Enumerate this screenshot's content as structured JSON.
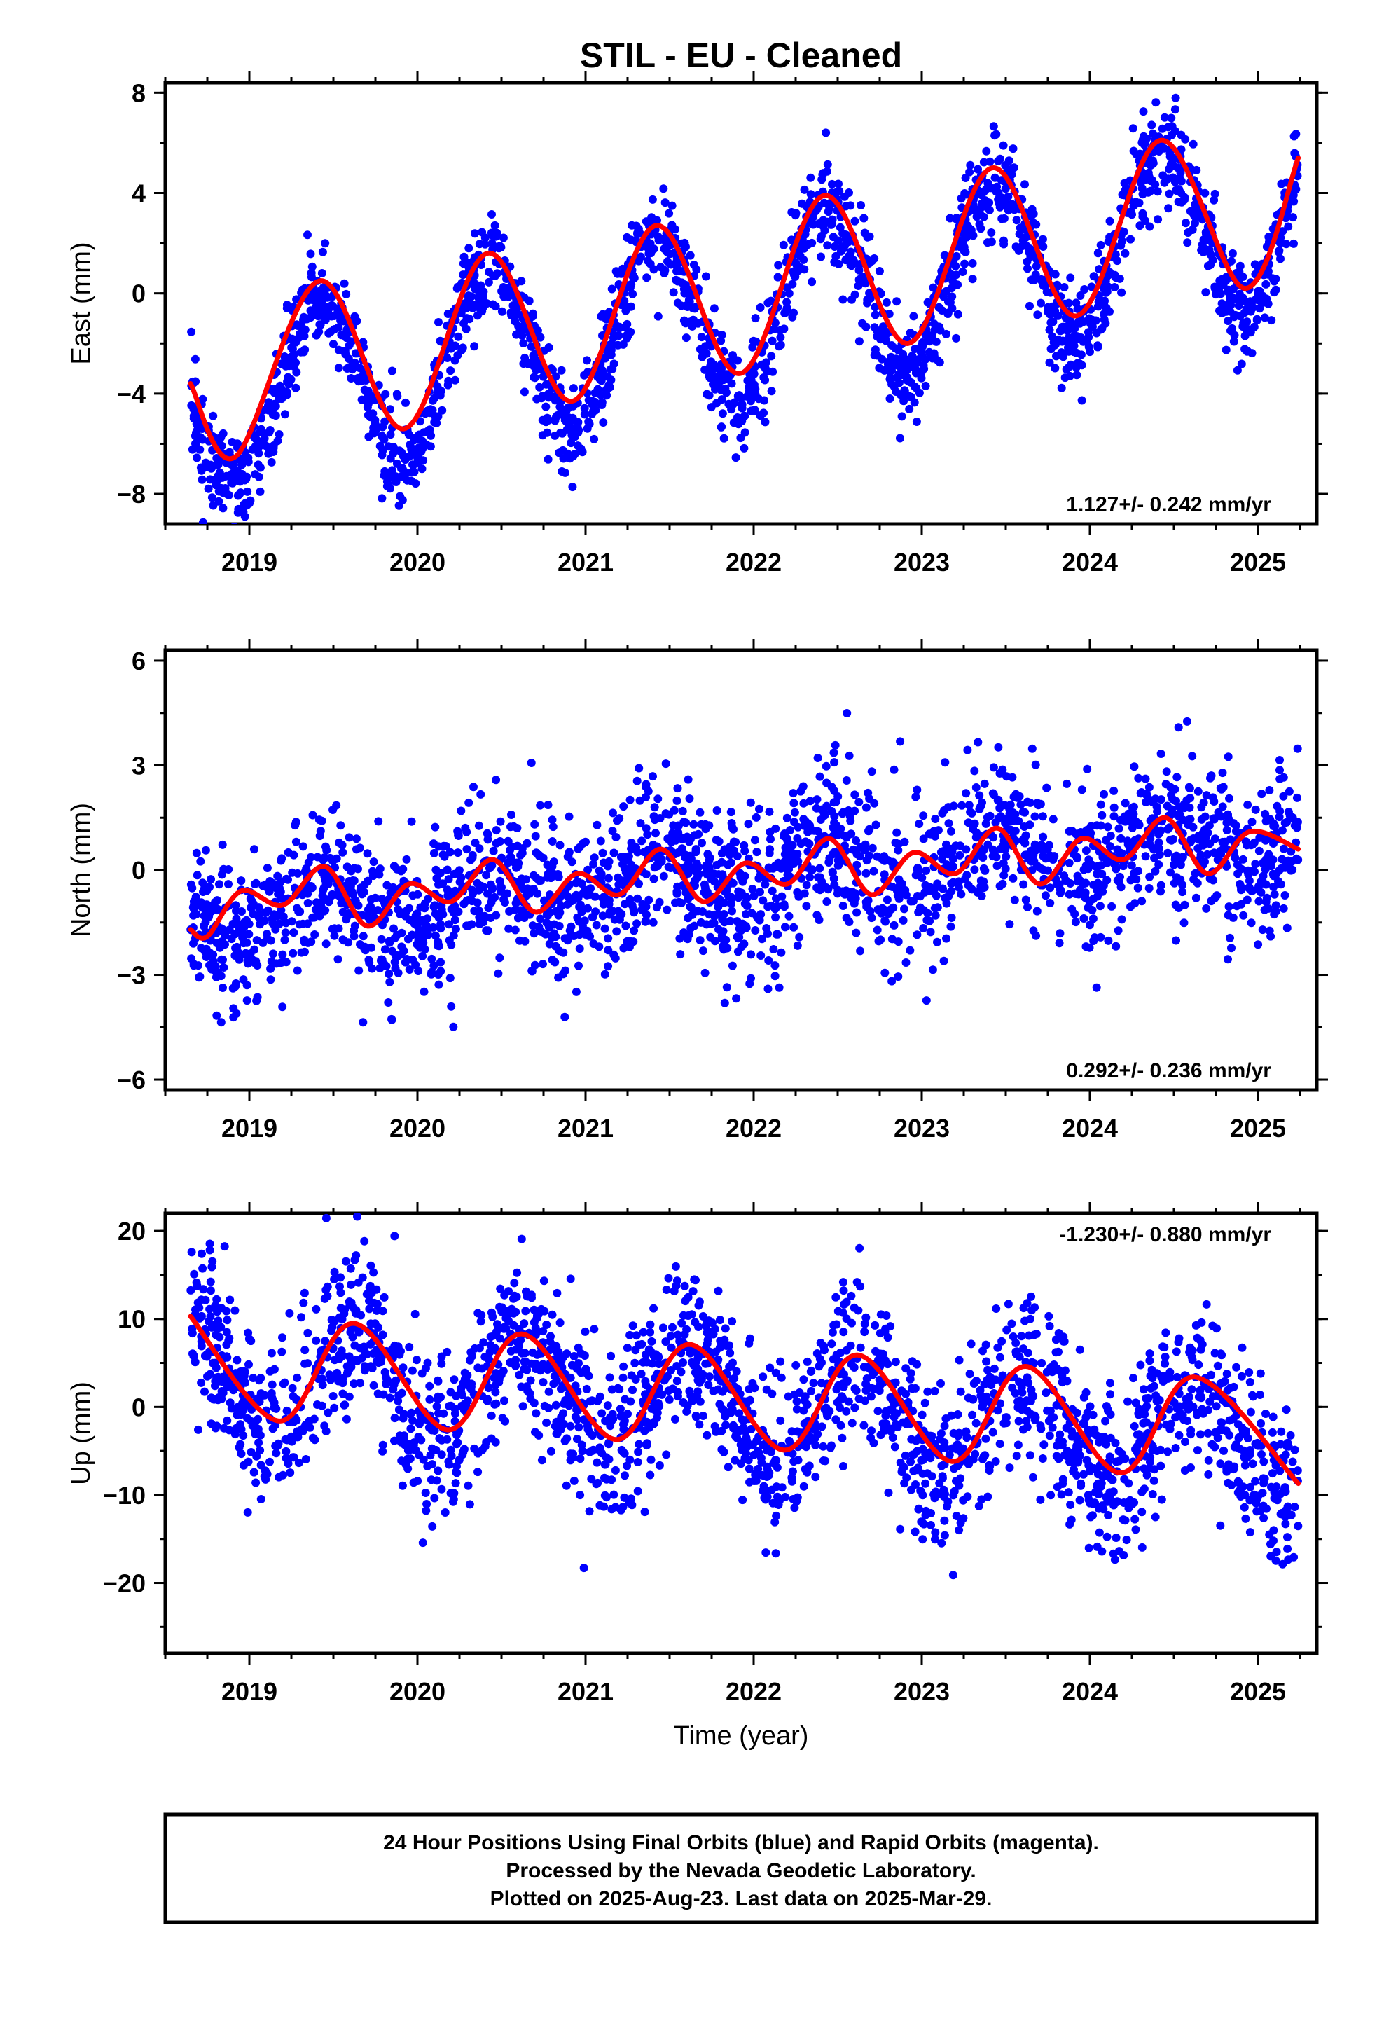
{
  "title": "STIL  - EU - Cleaned",
  "footer": {
    "line1": "24 Hour Positions Using Final Orbits (blue) and Rapid Orbits (magenta).",
    "line2": "Processed by the Nevada Geodetic Laboratory.",
    "line3": "Plotted on 2025-Aug-23. Last data on 2025-Mar-29."
  },
  "colors": {
    "points": "#0000ff",
    "model": "#ff0000",
    "axes": "#000000"
  },
  "chart_data": [
    {
      "type": "scatter",
      "component": "East",
      "ylabel": "East (mm)",
      "xlabel": "",
      "xlim": [
        2018.5,
        2025.35
      ],
      "ylim": [
        -9.2,
        8.4
      ],
      "xticks": [
        "2019",
        "2020",
        "2021",
        "2022",
        "2023",
        "2024",
        "2025"
      ],
      "yticks": [
        "8",
        "4",
        "0",
        "−4",
        "−8"
      ],
      "yticks_values": [
        8,
        4,
        0,
        -4,
        -8
      ],
      "rate_label": "1.127+/- 0.242 mm/yr",
      "rate_position": "bottom-right",
      "grid": false,
      "series": [
        {
          "kind": "daily-positions",
          "first": 2018.65,
          "last": 2025.24,
          "trend_start": -4.6,
          "trend_end": 3.2,
          "annual_amp": 3.4,
          "peak_time": 0.42,
          "scatter_sd": 1.0
        },
        {
          "kind": "model-fit",
          "points": [
            [
              2018.65,
              -3.6
            ],
            [
              2018.92,
              -6.5
            ],
            [
              2019.42,
              0.5
            ],
            [
              2019.92,
              -5.4
            ],
            [
              2020.42,
              1.6
            ],
            [
              2020.92,
              -4.3
            ],
            [
              2021.42,
              2.7
            ],
            [
              2021.92,
              -3.2
            ],
            [
              2022.42,
              3.9
            ],
            [
              2022.92,
              -2.0
            ],
            [
              2023.42,
              5.0
            ],
            [
              2023.92,
              -0.9
            ],
            [
              2024.42,
              6.1
            ],
            [
              2024.92,
              0.2
            ],
            [
              2025.24,
              5.4
            ]
          ]
        }
      ]
    },
    {
      "type": "scatter",
      "component": "North",
      "ylabel": "North (mm)",
      "xlabel": "",
      "xlim": [
        2018.5,
        2025.35
      ],
      "ylim": [
        -6.3,
        6.3
      ],
      "xticks": [
        "2019",
        "2020",
        "2021",
        "2022",
        "2023",
        "2024",
        "2025"
      ],
      "yticks": [
        "6",
        "3",
        "0",
        "−3",
        "−6"
      ],
      "yticks_values": [
        6,
        3,
        0,
        -3,
        -6
      ],
      "rate_label": "0.292+/- 0.236 mm/yr",
      "rate_position": "bottom-right",
      "grid": false,
      "series": [
        {
          "kind": "daily-positions",
          "first": 2018.65,
          "last": 2025.24,
          "trend_start": -1.4,
          "trend_end": 1.0,
          "annual_amp": 0.7,
          "peak_time": 0.45,
          "scatter_sd": 1.1
        },
        {
          "kind": "model-fit",
          "points": [
            [
              2018.65,
              -1.7
            ],
            [
              2018.75,
              -1.9
            ],
            [
              2018.95,
              -0.6
            ],
            [
              2019.2,
              -1.0
            ],
            [
              2019.45,
              0.1
            ],
            [
              2019.7,
              -1.6
            ],
            [
              2019.95,
              -0.4
            ],
            [
              2020.2,
              -0.9
            ],
            [
              2020.45,
              0.3
            ],
            [
              2020.7,
              -1.2
            ],
            [
              2020.95,
              -0.1
            ],
            [
              2021.2,
              -0.7
            ],
            [
              2021.45,
              0.6
            ],
            [
              2021.7,
              -0.9
            ],
            [
              2021.95,
              0.2
            ],
            [
              2022.2,
              -0.4
            ],
            [
              2022.45,
              0.9
            ],
            [
              2022.7,
              -0.7
            ],
            [
              2022.95,
              0.5
            ],
            [
              2023.2,
              -0.1
            ],
            [
              2023.45,
              1.2
            ],
            [
              2023.7,
              -0.4
            ],
            [
              2023.95,
              0.9
            ],
            [
              2024.2,
              0.3
            ],
            [
              2024.45,
              1.5
            ],
            [
              2024.7,
              -0.1
            ],
            [
              2024.95,
              1.1
            ],
            [
              2025.24,
              0.6
            ]
          ]
        }
      ]
    },
    {
      "type": "scatter",
      "component": "Up",
      "ylabel": "Up (mm)",
      "xlabel": "Time (year)",
      "xlim": [
        2018.5,
        2025.35
      ],
      "ylim": [
        -28,
        22
      ],
      "xticks": [
        "2019",
        "2020",
        "2021",
        "2022",
        "2023",
        "2024",
        "2025"
      ],
      "yticks": [
        "20",
        "10",
        "0",
        "−10",
        "−20"
      ],
      "yticks_values": [
        20,
        10,
        0,
        -10,
        -20
      ],
      "rate_label": "-1.230+/- 0.880 mm/yr",
      "rate_position": "top-right",
      "grid": false,
      "series": [
        {
          "kind": "daily-positions",
          "first": 2018.65,
          "last": 2025.24,
          "trend_start": 4.2,
          "trend_end": -3.9,
          "annual_amp": 5.8,
          "peak_time": 0.62,
          "scatter_sd": 4.6
        },
        {
          "kind": "model-fit",
          "points": [
            [
              2018.65,
              10.3
            ],
            [
              2019.18,
              -1.6
            ],
            [
              2019.62,
              9.5
            ],
            [
              2020.18,
              -2.6
            ],
            [
              2020.62,
              8.3
            ],
            [
              2021.18,
              -3.7
            ],
            [
              2021.62,
              7.1
            ],
            [
              2022.18,
              -4.9
            ],
            [
              2022.62,
              5.9
            ],
            [
              2023.18,
              -6.2
            ],
            [
              2023.62,
              4.6
            ],
            [
              2024.18,
              -7.5
            ],
            [
              2024.62,
              3.4
            ],
            [
              2025.24,
              -8.7
            ]
          ]
        }
      ]
    }
  ]
}
